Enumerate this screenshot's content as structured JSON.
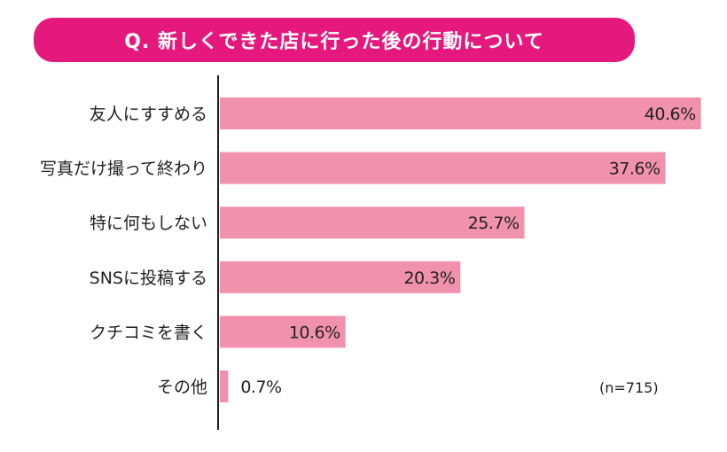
{
  "title": "Q. 新しくできた店に行った後の行動について",
  "note": "(n=715)",
  "colors": {
    "banner": "#e5197d",
    "bar": "#f092ad",
    "axis": "#231f20"
  },
  "chart_data": {
    "type": "bar",
    "orientation": "horizontal",
    "categories": [
      "友人にすすめる",
      "写真だけ撮って終わり",
      "特に何もしない",
      "SNSに投稿する",
      "クチコミを書く",
      "その他"
    ],
    "values": [
      40.6,
      37.6,
      25.7,
      20.3,
      10.6,
      0.7
    ],
    "value_labels": [
      "40.6%",
      "37.6%",
      "25.7%",
      "20.3%",
      "10.6%",
      "0.7%"
    ],
    "unit": "%",
    "xlim": [
      0,
      41
    ],
    "grid": false,
    "legend": "none"
  }
}
